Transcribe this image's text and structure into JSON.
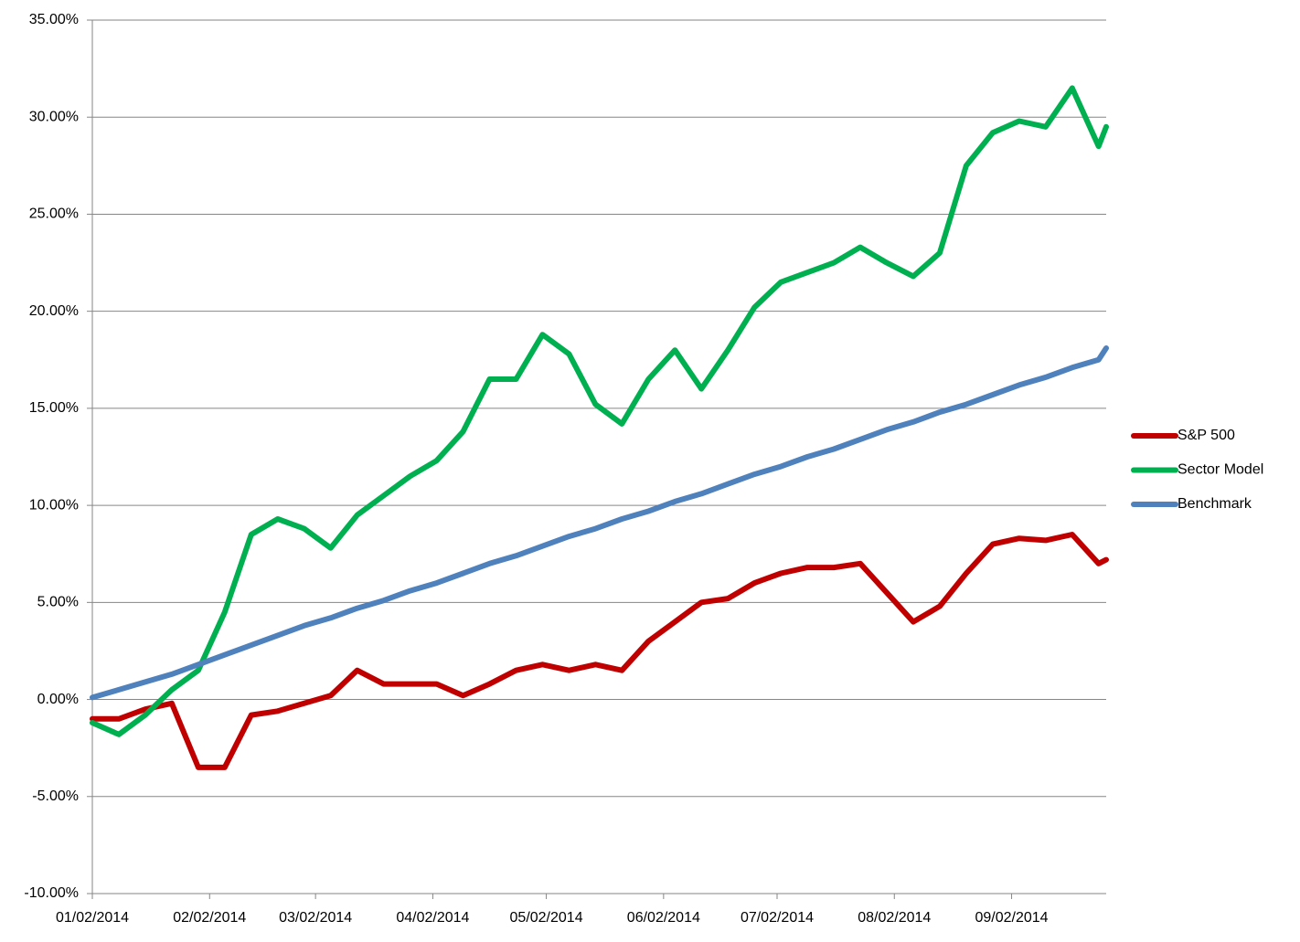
{
  "chart_data": {
    "type": "line",
    "x": [
      "2014-01-02",
      "2014-01-09",
      "2014-01-16",
      "2014-01-23",
      "2014-01-30",
      "2014-02-06",
      "2014-02-13",
      "2014-02-20",
      "2014-02-27",
      "2014-03-06",
      "2014-03-13",
      "2014-03-20",
      "2014-03-27",
      "2014-04-03",
      "2014-04-10",
      "2014-04-17",
      "2014-04-24",
      "2014-05-01",
      "2014-05-08",
      "2014-05-15",
      "2014-05-22",
      "2014-05-29",
      "2014-06-05",
      "2014-06-12",
      "2014-06-19",
      "2014-06-26",
      "2014-07-03",
      "2014-07-10",
      "2014-07-17",
      "2014-07-24",
      "2014-07-31",
      "2014-08-07",
      "2014-08-14",
      "2014-08-21",
      "2014-08-28",
      "2014-09-04",
      "2014-09-11",
      "2014-09-18",
      "2014-09-25",
      "2014-09-27"
    ],
    "series": [
      {
        "name": "S&P 500",
        "color": "#c00000",
        "values": [
          -1.0,
          -1.0,
          -0.5,
          -0.2,
          -3.5,
          -3.5,
          -0.8,
          -0.6,
          -0.2,
          0.2,
          1.5,
          0.8,
          0.8,
          0.8,
          0.2,
          0.8,
          1.5,
          1.8,
          1.5,
          1.8,
          1.5,
          3.0,
          4.0,
          5.0,
          5.2,
          6.0,
          6.5,
          6.8,
          6.8,
          7.0,
          5.5,
          4.0,
          4.8,
          6.5,
          8.0,
          8.3,
          8.2,
          8.5,
          7.0,
          7.2
        ]
      },
      {
        "name": "Sector Model",
        "color": "#00b050",
        "values": [
          -1.2,
          -1.8,
          -0.8,
          0.5,
          1.5,
          4.5,
          8.5,
          9.3,
          8.8,
          7.8,
          9.5,
          10.5,
          11.5,
          12.3,
          13.8,
          16.5,
          16.5,
          18.8,
          17.8,
          15.2,
          14.2,
          16.5,
          18.0,
          16.0,
          18.0,
          20.2,
          21.5,
          22.0,
          22.5,
          23.3,
          22.5,
          21.8,
          23.0,
          27.5,
          29.2,
          29.8,
          29.5,
          31.5,
          28.5,
          29.5
        ]
      },
      {
        "name": "Benchmark",
        "color": "#4f81bd",
        "values": [
          0.1,
          0.5,
          0.9,
          1.3,
          1.8,
          2.3,
          2.8,
          3.3,
          3.8,
          4.2,
          4.7,
          5.1,
          5.6,
          6.0,
          6.5,
          7.0,
          7.4,
          7.9,
          8.4,
          8.8,
          9.3,
          9.7,
          10.2,
          10.6,
          11.1,
          11.6,
          12.0,
          12.5,
          12.9,
          13.4,
          13.9,
          14.3,
          14.8,
          15.2,
          15.7,
          16.2,
          16.6,
          17.1,
          17.5,
          18.1
        ]
      }
    ],
    "xlim": [
      "2014-01-02",
      "2014-09-27"
    ],
    "xticks": [
      {
        "value": "2014-01-02",
        "label": "01/02/2014"
      },
      {
        "value": "2014-02-02",
        "label": "02/02/2014"
      },
      {
        "value": "2014-03-02",
        "label": "03/02/2014"
      },
      {
        "value": "2014-04-02",
        "label": "04/02/2014"
      },
      {
        "value": "2014-05-02",
        "label": "05/02/2014"
      },
      {
        "value": "2014-06-02",
        "label": "06/02/2014"
      },
      {
        "value": "2014-07-02",
        "label": "07/02/2014"
      },
      {
        "value": "2014-08-02",
        "label": "08/02/2014"
      },
      {
        "value": "2014-09-02",
        "label": "09/02/2014"
      }
    ],
    "ylim": [
      -10,
      35
    ],
    "yticks": [
      {
        "value": -10,
        "label": "-10.00%"
      },
      {
        "value": -5,
        "label": "-5.00%"
      },
      {
        "value": 0,
        "label": "0.00%"
      },
      {
        "value": 5,
        "label": "5.00%"
      },
      {
        "value": 10,
        "label": "10.00%"
      },
      {
        "value": 15,
        "label": "15.00%"
      },
      {
        "value": 20,
        "label": "20.00%"
      },
      {
        "value": 25,
        "label": "25.00%"
      },
      {
        "value": 30,
        "label": "30.00%"
      },
      {
        "value": 35,
        "label": "35.00%"
      }
    ],
    "grid": true,
    "legend": "right"
  }
}
